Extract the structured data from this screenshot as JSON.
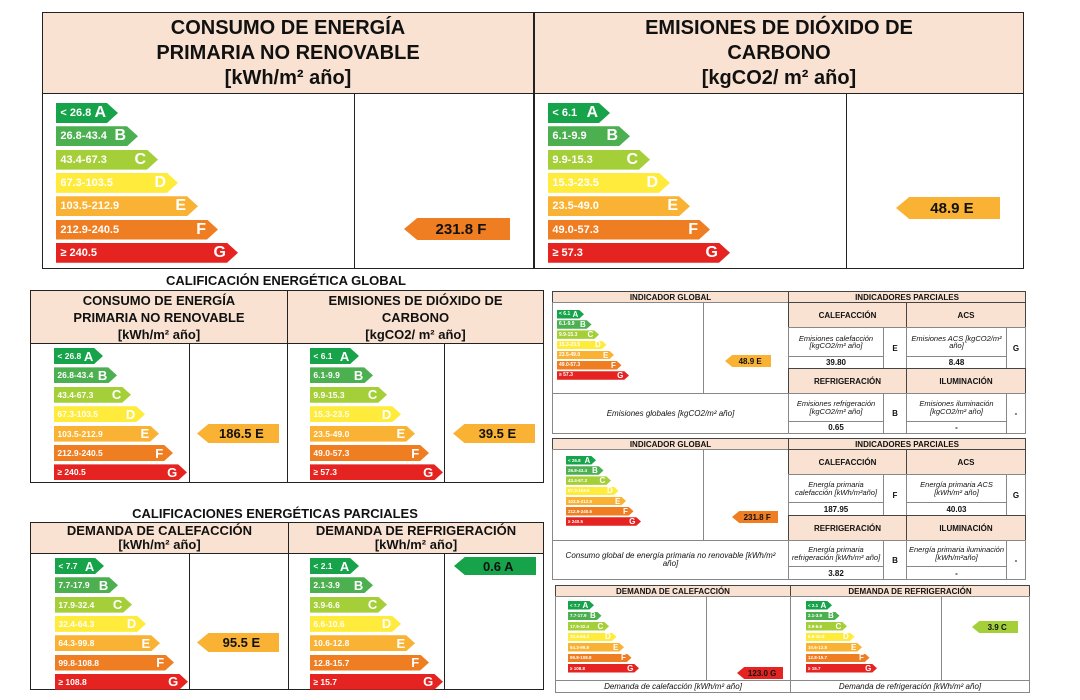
{
  "colors": {
    "A": "#16a34a",
    "B": "#4caf50",
    "C": "#a5cf38",
    "D": "#ffeb3b",
    "E": "#f9b233",
    "F": "#ef7d22",
    "G": "#e52320"
  },
  "letters": [
    "A",
    "B",
    "C",
    "D",
    "E",
    "F",
    "G"
  ],
  "scales": {
    "energy": [
      "< 26.8",
      "26.8-43.4",
      "43.4-67.3",
      "67.3-103.5",
      "103.5-212.9",
      "212.9-240.5",
      "≥ 240.5"
    ],
    "co2": [
      "< 6.1",
      "6.1-9.9",
      "9.9-15.3",
      "15.3-23.5",
      "23.5-49.0",
      "49.0-57.3",
      "≥ 57.3"
    ],
    "heat": [
      "< 7.7",
      "7.7-17.9",
      "17.9-32.4",
      "32.4-64.3",
      "64.3-99.8",
      "99.8-108.8",
      "≥ 108.8"
    ],
    "cool": [
      "< 2.1",
      "2.1-3.9",
      "3.9-6.6",
      "6.6-10.6",
      "10.6-12.8",
      "12.8-15.7",
      "≥ 15.7"
    ]
  },
  "top": {
    "energy": {
      "title1": "CONSUMO DE ENERGÍA",
      "title2": "PRIMARIA NO RENOVABLE",
      "unit": "[kWh/m² año]",
      "result": "231.8 F",
      "rating": "F"
    },
    "co2": {
      "title1": "EMISIONES DE DIÓXIDO DE",
      "title2": "CARBONO",
      "unit": "[kgCO2/ m² año]",
      "result": "48.9 E",
      "rating": "E"
    }
  },
  "global": {
    "section": "CALIFICACIÓN ENERGÉTICA GLOBAL",
    "energy": {
      "title1": "CONSUMO DE ENERGÍA",
      "title2": "PRIMARIA NO RENOVABLE",
      "unit": "[kWh/m² año]",
      "result": "186.5 E",
      "rating": "E"
    },
    "co2": {
      "title1": "EMISIONES DE DIÓXIDO DE",
      "title2": "CARBONO",
      "unit": "[kgCO2/ m² año]",
      "result": "39.5 E",
      "rating": "E"
    }
  },
  "partial": {
    "section": "CALIFICACIONES ENERGÉTICAS PARCIALES",
    "heat": {
      "title": "DEMANDA DE CALEFACCIÓN",
      "unit": "[kWh/m² año]",
      "result": "95.5 E",
      "rating": "E"
    },
    "cool": {
      "title": "DEMANDA DE REFRIGERACIÓN",
      "unit": "[kWh/m² año]",
      "result": "0.6 A",
      "rating": "A"
    }
  },
  "m1": {
    "ind_global": "INDICADOR GLOBAL",
    "ind_parciales": "INDICADORES PARCIALES",
    "calefaccion": "CALEFACCIÓN",
    "acs": "ACS",
    "refrigeracion": "REFRIGERACIÓN",
    "iluminacion": "ILUMINACIÓN",
    "result": "48.9 E",
    "rating": "E",
    "caption": "Emisiones globales [kgCO2/m² año]",
    "cal_label": "Emisiones calefacción [kgCO2/m² año]",
    "cal_val": "39.80",
    "cal_letter": "E",
    "acs_label": "Emisiones ACS [kgCO2/m² año]",
    "acs_val": "8.48",
    "acs_letter": "G",
    "ref_label": "Emisiones refrigeración [kgCO2/m² año]",
    "ref_val": "0.65",
    "ref_letter": "B",
    "ilu_label": "Emisiones iluminación [kgCO2/m² año]",
    "ilu_val": "-",
    "ilu_letter": "-"
  },
  "m2": {
    "ind_global": "INDICADOR GLOBAL",
    "ind_parciales": "INDICADORES PARCIALES",
    "calefaccion": "CALEFACCIÓN",
    "acs": "ACS",
    "refrigeracion": "REFRIGERACIÓN",
    "iluminacion": "ILUMINACIÓN",
    "result": "231.8 F",
    "rating": "F",
    "caption": "Consumo global de energía primaria no renovable [kWh/m² año]",
    "cal_label": "Energía primaria calefacción [kWh/m²año]",
    "cal_val": "187.95",
    "cal_letter": "F",
    "acs_label": "Energía primaria ACS [kWh/m² año]",
    "acs_val": "40.03",
    "acs_letter": "G",
    "ref_label": "Energía primaria refrigeración [kWh/m² año]",
    "ref_val": "3.82",
    "ref_letter": "B",
    "ilu_label": "Energía primaria iluminación [kWh/m²año]",
    "ilu_val": "-",
    "ilu_letter": "-"
  },
  "m3": {
    "heat_title": "DEMANDA DE CALEFACCIÓN",
    "cool_title": "DEMANDA DE REFRIGERACIÓN",
    "heat_result": "123.0 G",
    "heat_rating": "G",
    "cool_result": "3.9 C",
    "cool_rating": "C",
    "heat_caption": "Demanda de calefacción [kWh/m² año]",
    "cool_caption": "Demanda de refrigeración [kWh/m² año]"
  }
}
